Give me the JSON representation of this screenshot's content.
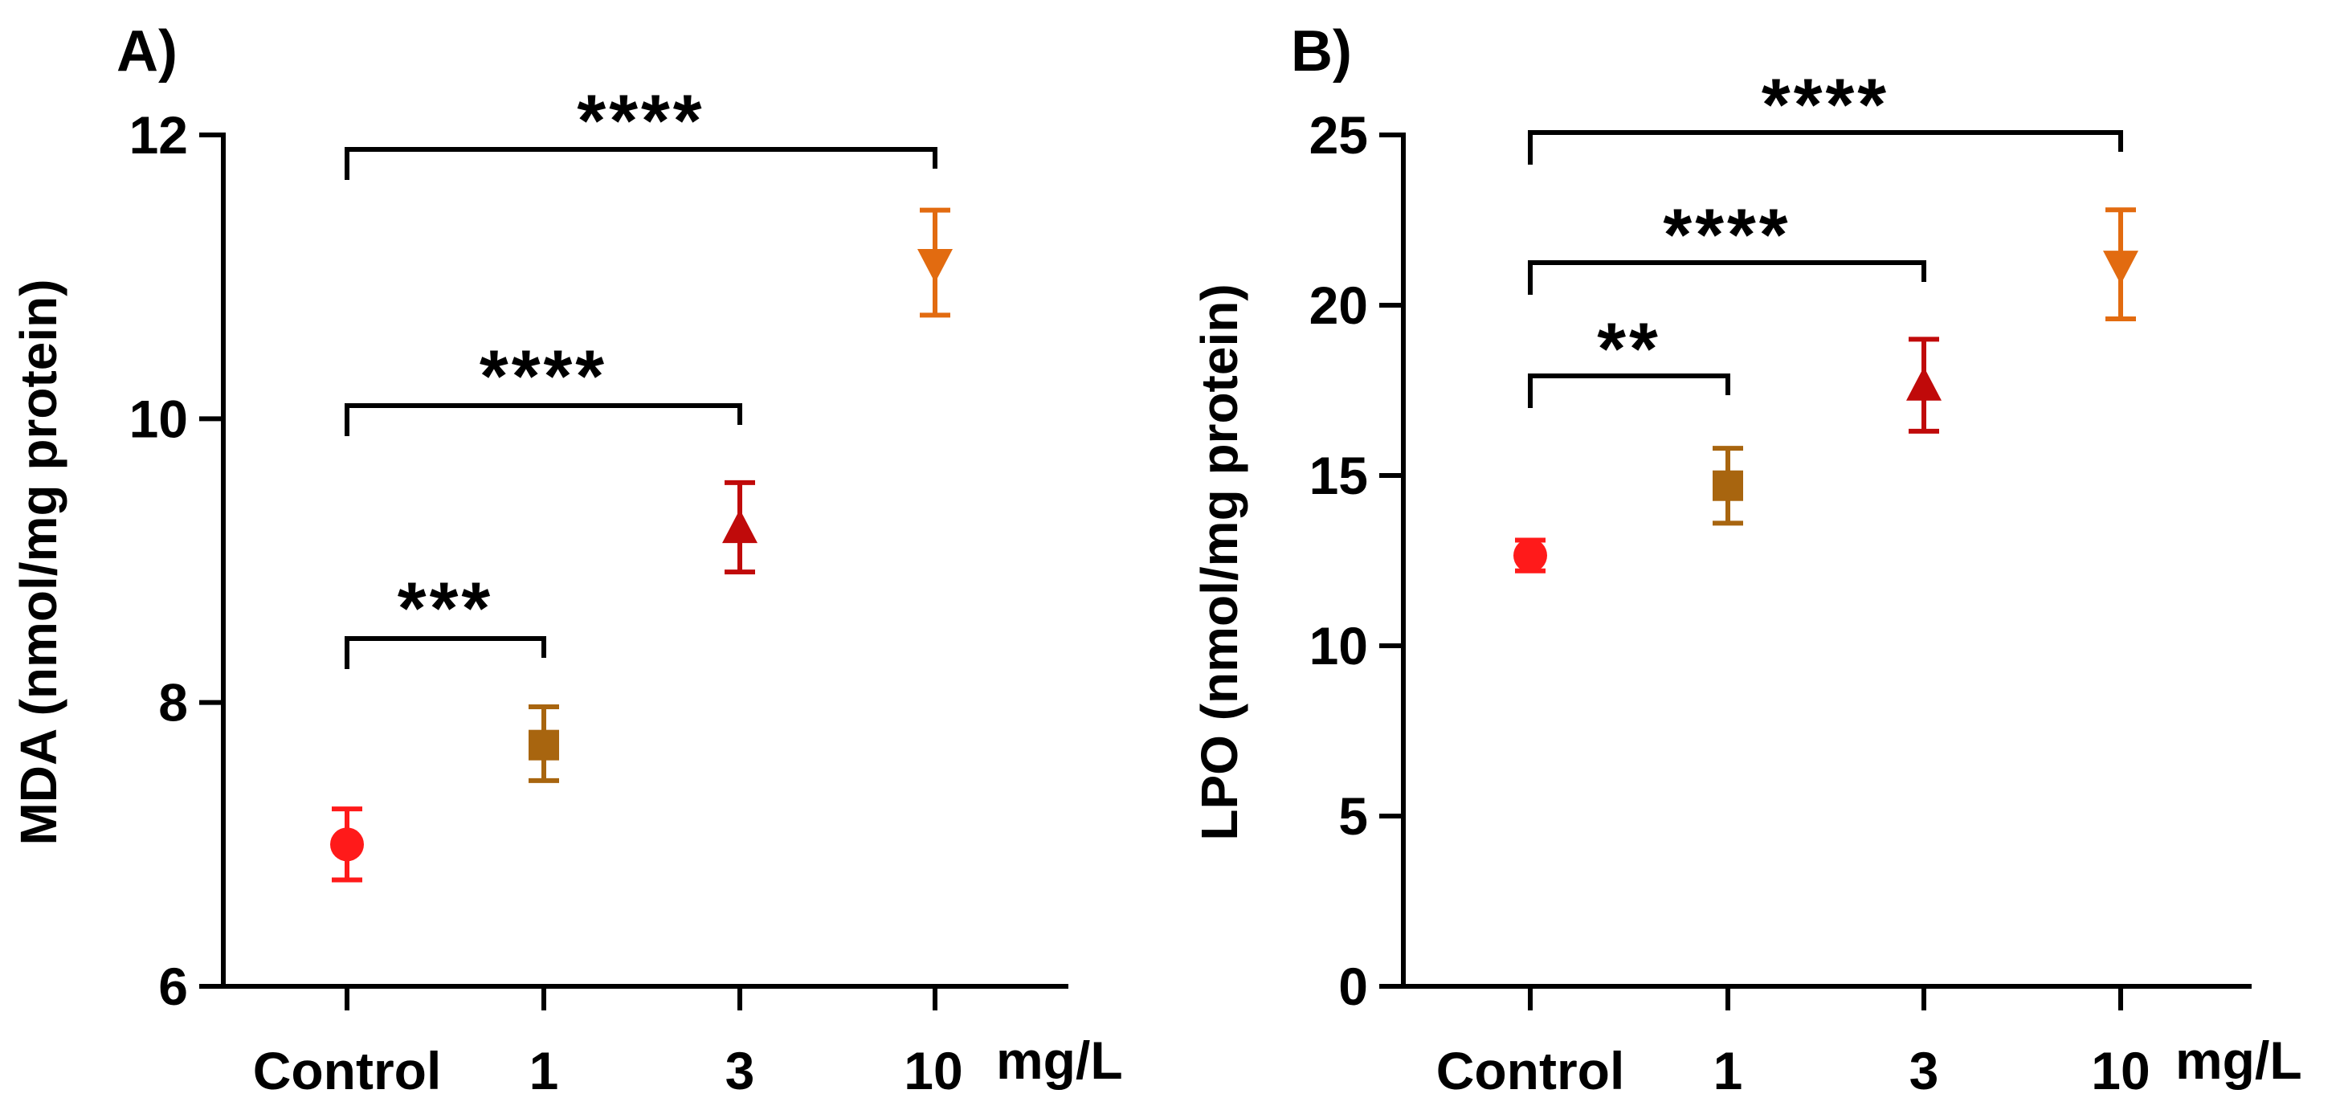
{
  "chart_data": [
    {
      "panel": "A)",
      "type": "scatter",
      "ylabel": "MDA (nmol/mg protein)",
      "xunit": "mg/L",
      "categories": [
        "Control",
        "1",
        "3",
        "10"
      ],
      "ylim": [
        6,
        12
      ],
      "yticks": [
        6,
        8,
        10,
        12
      ],
      "points": [
        {
          "category": "Control",
          "mean": 7.0,
          "err_low": 6.75,
          "err_high": 7.25,
          "marker": "circle",
          "color": "#ff1a1a"
        },
        {
          "category": "1",
          "mean": 7.7,
          "err_low": 7.45,
          "err_high": 7.97,
          "marker": "square",
          "color": "#a8650f"
        },
        {
          "category": "3",
          "mean": 9.22,
          "err_low": 8.92,
          "err_high": 9.55,
          "marker": "triangle-up",
          "color": "#c00a0a"
        },
        {
          "category": "10",
          "mean": 11.1,
          "err_low": 10.73,
          "err_high": 11.47,
          "marker": "triangle-down",
          "color": "#e26b10"
        }
      ],
      "comparisons": [
        {
          "from": "Control",
          "to": "1",
          "label": "***"
        },
        {
          "from": "Control",
          "to": "3",
          "label": "****"
        },
        {
          "from": "Control",
          "to": "10",
          "label": "****"
        }
      ]
    },
    {
      "panel": "B)",
      "type": "scatter",
      "ylabel": "LPO (nmol/mg protein)",
      "xunit": "mg/L",
      "categories": [
        "Control",
        "1",
        "3",
        "10"
      ],
      "ylim": [
        0,
        25
      ],
      "yticks": [
        0,
        5,
        10,
        15,
        20,
        25
      ],
      "points": [
        {
          "category": "Control",
          "mean": 12.65,
          "err_low": 12.2,
          "err_high": 13.1,
          "marker": "circle",
          "color": "#ff1a1a"
        },
        {
          "category": "1",
          "mean": 14.7,
          "err_low": 13.6,
          "err_high": 15.8,
          "marker": "square",
          "color": "#a8650f"
        },
        {
          "category": "3",
          "mean": 17.6,
          "err_low": 16.3,
          "err_high": 19.0,
          "marker": "triangle-up",
          "color": "#c00a0a"
        },
        {
          "category": "10",
          "mean": 21.2,
          "err_low": 19.6,
          "err_high": 22.8,
          "marker": "triangle-down",
          "color": "#e26b10"
        }
      ],
      "comparisons": [
        {
          "from": "Control",
          "to": "1",
          "label": "**"
        },
        {
          "from": "Control",
          "to": "3",
          "label": "****"
        },
        {
          "from": "Control",
          "to": "10",
          "label": "****"
        }
      ]
    }
  ]
}
